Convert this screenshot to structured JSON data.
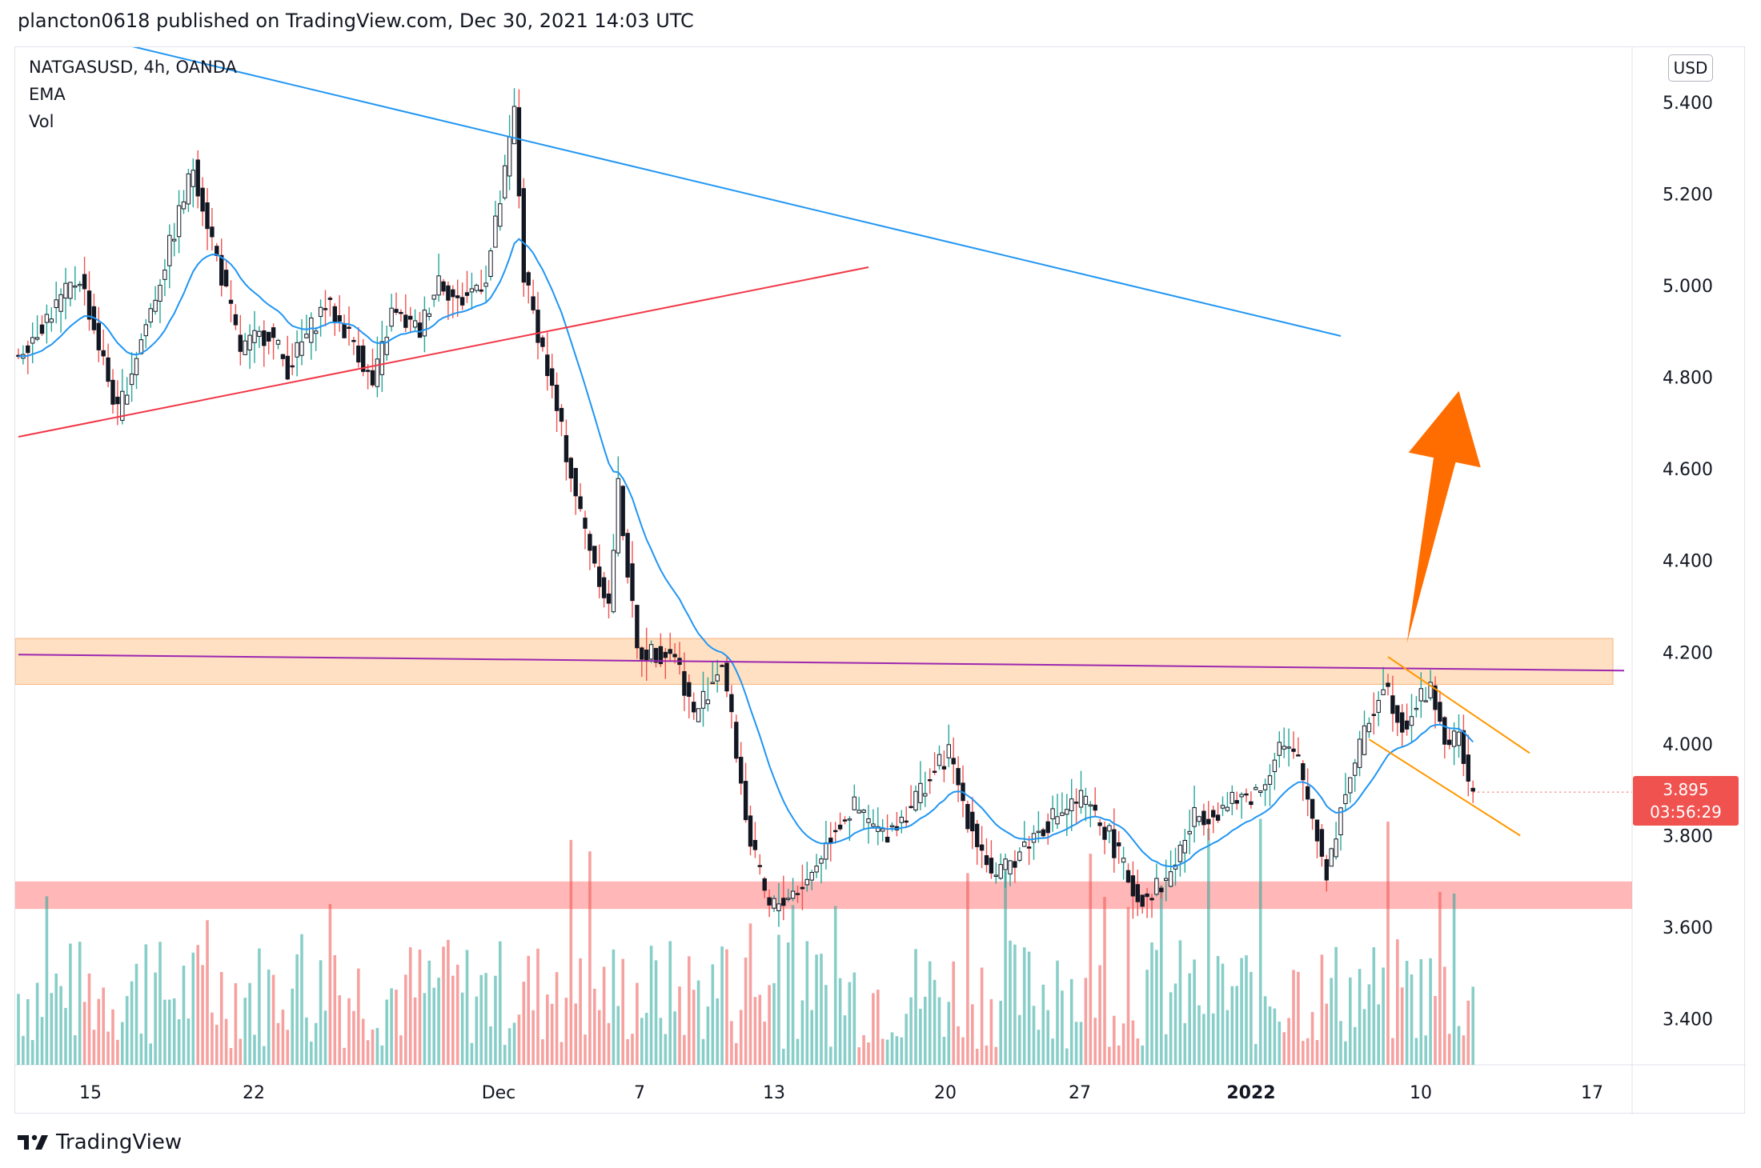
{
  "header": {
    "publish_text": "plancton0618 published on TradingView.com, Dec 30, 2021 14:03 UTC"
  },
  "legend": {
    "symbol": "NATGASUSD, 4h, OANDA",
    "ema": "EMA",
    "vol": "Vol"
  },
  "footer": {
    "brand": "TradingView"
  },
  "colors": {
    "up": "#26a69a",
    "down": "#ef5350",
    "ema": "#2196f3",
    "downtrend": "#2196f3",
    "uptrend": "#f23645",
    "resistance_zone": "#ffcc99",
    "support_zone": "#ff9999",
    "horizontal_line": "#9c27b0",
    "channel": "#ff9800",
    "arrow": "#ff6d00"
  },
  "chart_data": {
    "type": "candlestick",
    "currency": "USD",
    "y_ticks": [
      "5.400",
      "5.200",
      "5.000",
      "4.800",
      "4.600",
      "4.400",
      "4.200",
      "4.000",
      "3.800",
      "3.600",
      "3.400"
    ],
    "x_ticks": [
      "15",
      "22",
      "Dec",
      "7",
      "13",
      "20",
      "27",
      "2022",
      "10",
      "17"
    ],
    "last_price": "3.895",
    "countdown": "03:56:29",
    "ylim": [
      3.3,
      5.52
    ],
    "price_path": [
      [
        0,
        4.84
      ],
      [
        14,
        5.02
      ],
      [
        22,
        4.72
      ],
      [
        30,
        4.98
      ],
      [
        38,
        5.26
      ],
      [
        44,
        5.02
      ],
      [
        48,
        4.86
      ],
      [
        54,
        4.9
      ],
      [
        58,
        4.82
      ],
      [
        66,
        4.96
      ],
      [
        72,
        4.88
      ],
      [
        76,
        4.78
      ],
      [
        80,
        4.94
      ],
      [
        86,
        4.9
      ],
      [
        90,
        5.02
      ],
      [
        94,
        4.96
      ],
      [
        100,
        5.02
      ],
      [
        104,
        5.24
      ],
      [
        106,
        5.38
      ],
      [
        108,
        5.02
      ],
      [
        112,
        4.86
      ],
      [
        120,
        4.5
      ],
      [
        126,
        4.3
      ],
      [
        128,
        4.56
      ],
      [
        132,
        4.2
      ],
      [
        140,
        4.2
      ],
      [
        144,
        4.06
      ],
      [
        150,
        4.18
      ],
      [
        152,
        4.05
      ],
      [
        156,
        3.78
      ],
      [
        160,
        3.64
      ],
      [
        168,
        3.7
      ],
      [
        174,
        3.82
      ],
      [
        178,
        3.86
      ],
      [
        184,
        3.8
      ],
      [
        188,
        3.84
      ],
      [
        192,
        3.9
      ],
      [
        198,
        3.98
      ],
      [
        202,
        3.84
      ],
      [
        208,
        3.7
      ],
      [
        214,
        3.78
      ],
      [
        220,
        3.84
      ],
      [
        226,
        3.88
      ],
      [
        232,
        3.8
      ],
      [
        238,
        3.66
      ],
      [
        244,
        3.7
      ],
      [
        250,
        3.84
      ],
      [
        256,
        3.86
      ],
      [
        264,
        3.9
      ],
      [
        268,
        4.0
      ],
      [
        272,
        3.96
      ],
      [
        276,
        3.8
      ],
      [
        278,
        3.72
      ],
      [
        282,
        3.9
      ],
      [
        286,
        4.02
      ],
      [
        290,
        4.14
      ],
      [
        294,
        4.04
      ],
      [
        298,
        4.1
      ],
      [
        300,
        4.12
      ],
      [
        304,
        3.98
      ],
      [
        306,
        4.04
      ],
      [
        308,
        3.895
      ]
    ],
    "volume_range": [
      0,
      6.4
    ],
    "annotations": {
      "descending_trendline": {
        "from": [
          -40,
          5.68
        ],
        "to": [
          280,
          4.89
        ]
      },
      "ascending_trendline": {
        "from": [
          0,
          4.67
        ],
        "to": [
          180,
          5.04
        ]
      },
      "resistance_zone": [
        4.13,
        4.23
      ],
      "horizontal_line": {
        "from": [
          0,
          4.195
        ],
        "to": [
          340,
          4.16
        ]
      },
      "support_zone": [
        3.64,
        3.7
      ],
      "channel_upper": {
        "from": [
          290,
          4.19
        ],
        "to": [
          320,
          3.98
        ]
      },
      "channel_lower": {
        "from": [
          286,
          4.01
        ],
        "to": [
          318,
          3.8
        ]
      },
      "breakout_arrow": {
        "from": [
          294,
          4.22
        ],
        "to": [
          305,
          4.77
        ]
      }
    }
  }
}
